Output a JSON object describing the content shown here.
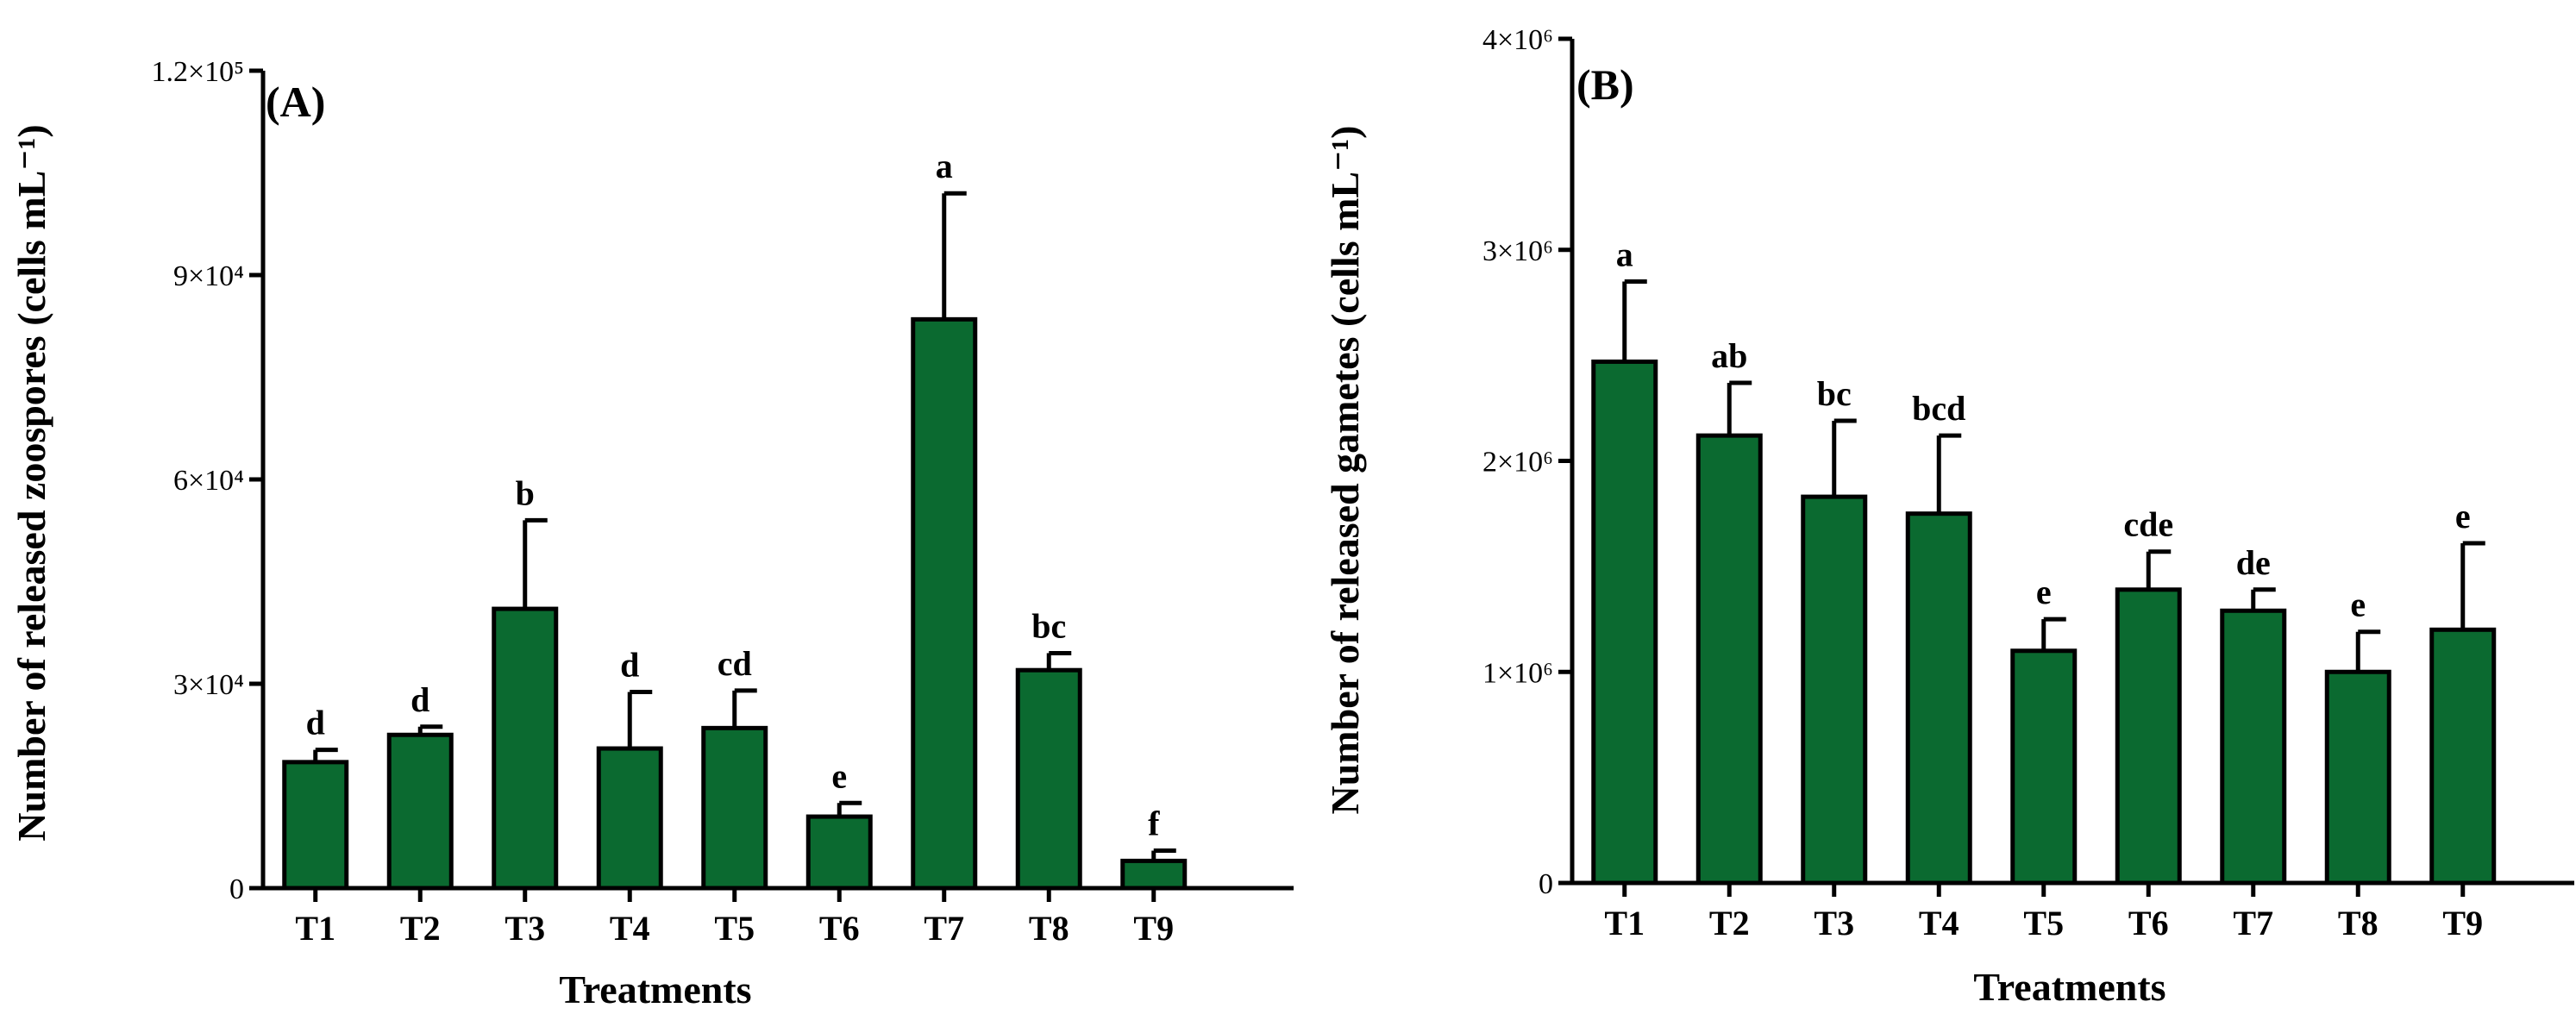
{
  "chart_data": [
    {
      "type": "bar",
      "panel_label": "(A)",
      "xlabel": "Treatments",
      "ylabel": "Number of released zoospores (cells mL⁻¹)",
      "ylim": [
        0,
        120000
      ],
      "yticks": [
        {
          "value": 0,
          "label": "0"
        },
        {
          "value": 30000,
          "label": "3×10⁴"
        },
        {
          "value": 60000,
          "label": "6×10⁴"
        },
        {
          "value": 90000,
          "label": "9×10⁴"
        },
        {
          "value": 120000,
          "label": "1.2×10⁵"
        }
      ],
      "categories": [
        "T1",
        "T2",
        "T3",
        "T4",
        "T5",
        "T6",
        "T7",
        "T8",
        "T9"
      ],
      "values": [
        18500,
        22500,
        41000,
        20500,
        23500,
        10500,
        83500,
        32000,
        4000
      ],
      "errors": [
        1800,
        1200,
        13000,
        8300,
        5500,
        2000,
        18500,
        2500,
        1500
      ],
      "letters": [
        "d",
        "d",
        "b",
        "d",
        "cd",
        "e",
        "a",
        "bc",
        "f"
      ],
      "color": "#0b6a30"
    },
    {
      "type": "bar",
      "panel_label": "(B)",
      "xlabel": "Treatments",
      "ylabel": "Number of released gametes (cells mL⁻¹)",
      "ylim": [
        0,
        4000000
      ],
      "yticks": [
        {
          "value": 0,
          "label": "0"
        },
        {
          "value": 1000000,
          "label": "1×10⁶"
        },
        {
          "value": 2000000,
          "label": "2×10⁶"
        },
        {
          "value": 3000000,
          "label": "3×10⁶"
        },
        {
          "value": 4000000,
          "label": "4×10⁶"
        }
      ],
      "categories": [
        "T1",
        "T2",
        "T3",
        "T4",
        "T5",
        "T6",
        "T7",
        "T8",
        "T9"
      ],
      "values": [
        2470000,
        2120000,
        1830000,
        1750000,
        1100000,
        1390000,
        1290000,
        1000000,
        1200000
      ],
      "errors": [
        380000,
        250000,
        360000,
        370000,
        150000,
        180000,
        100000,
        190000,
        410000
      ],
      "letters": [
        "a",
        "ab",
        "bc",
        "bcd",
        "e",
        "cde",
        "de",
        "e",
        "e"
      ],
      "color": "#0b6a30"
    }
  ]
}
